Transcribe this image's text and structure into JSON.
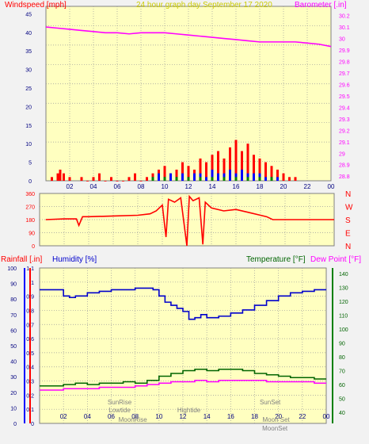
{
  "colors": {
    "background": "#f2f2f2",
    "plot_bg": "#ffffc0",
    "grid": "#9a9a9a",
    "wind": "#ff0000",
    "gust": "#0000ff",
    "green": "#008000",
    "baro": "#ff00ff",
    "direction_axis": "#ff0000",
    "humidity": "#0000cc",
    "temperature": "#006400",
    "dewpoint": "#ff00ff",
    "title": "#cccc00",
    "annotation": "#808080"
  },
  "chart_data": [
    {
      "id": "wind-baro",
      "type": "line",
      "title": "24 hour graph day   September 17 2020",
      "left_label": "Windspeed [mph]",
      "right_label": "Barometer [.in]",
      "x_ticks": [
        "02",
        "04",
        "06",
        "08",
        "10",
        "12",
        "14",
        "16",
        "18",
        "20",
        "22",
        "00"
      ],
      "left_ticks": [
        "0",
        "5",
        "10",
        "15",
        "20",
        "25",
        "30",
        "35",
        "40",
        "45"
      ],
      "right_ticks": [
        "28.8",
        "28.9",
        "29",
        "29.1",
        "29.2",
        "29.3",
        "29.4",
        "29.5",
        "29.6",
        "29.7",
        "29.8",
        "29.9",
        "30",
        "30.1",
        "30.2"
      ],
      "ylim_left": [
        0,
        47
      ],
      "ylim_right": [
        28.76,
        30.28
      ],
      "grid": true,
      "series": [
        {
          "role": "barometer",
          "axis": "right",
          "color_key": "baro",
          "x": [
            0,
            1,
            2,
            3,
            4,
            5,
            6,
            7,
            8,
            9,
            10,
            11,
            12,
            13,
            14,
            15,
            16,
            17,
            18,
            19,
            20,
            21,
            22,
            23,
            24
          ],
          "values": [
            30.1,
            30.09,
            30.08,
            30.07,
            30.06,
            30.05,
            30.05,
            30.04,
            30.05,
            30.05,
            30.05,
            30.04,
            30.03,
            30.02,
            30.01,
            30.0,
            29.99,
            29.98,
            29.97,
            29.97,
            29.97,
            29.97,
            29.96,
            29.95,
            29.93
          ]
        },
        {
          "role": "wind",
          "axis": "left",
          "color_key": "wind",
          "x": [
            0.5,
            1,
            1.2,
            1.5,
            2,
            3,
            3.5,
            4,
            4.5,
            5,
            5.5,
            6,
            6.5,
            7,
            7.5,
            8,
            8.5,
            9,
            9.5,
            10,
            10.5,
            11,
            11.5,
            12,
            12.5,
            13,
            13.5,
            14,
            14.5,
            15,
            15.5,
            16,
            16.5,
            17,
            17.5,
            18,
            18.5,
            19,
            19.5,
            20,
            20.5,
            21
          ],
          "values": [
            1,
            2,
            3,
            2,
            1,
            1,
            0,
            1,
            2,
            0,
            1,
            0,
            0,
            1,
            2,
            0,
            1,
            2,
            3,
            4,
            2,
            3,
            5,
            4,
            3,
            6,
            5,
            7,
            8,
            6,
            9,
            11,
            8,
            10,
            7,
            6,
            5,
            4,
            3,
            2,
            1,
            1
          ]
        },
        {
          "role": "gust",
          "axis": "left",
          "color_key": "gust",
          "x": [
            9,
            9.5,
            10,
            10.5,
            11,
            11.5,
            12,
            12.5,
            13,
            13.5,
            14,
            14.5,
            15,
            15.5,
            16,
            16.5,
            17,
            17.5,
            18,
            18.5,
            19,
            19.5
          ],
          "values": [
            1,
            2,
            1,
            2,
            1,
            2,
            1,
            2,
            2,
            1,
            3,
            2,
            2,
            3,
            2,
            3,
            2,
            2,
            2,
            1,
            1,
            1
          ]
        },
        {
          "role": "green",
          "axis": "left",
          "color_key": "green",
          "x": [
            9,
            10,
            11,
            12,
            13,
            14,
            15,
            16,
            17,
            18,
            19
          ],
          "values": [
            1,
            1,
            1,
            1,
            1,
            1,
            1,
            1,
            1,
            1,
            1
          ]
        }
      ]
    },
    {
      "id": "wind-direction",
      "type": "line",
      "left_ticks": [
        "0",
        "90",
        "180",
        "270",
        "360"
      ],
      "right_labels": [
        "N",
        "W",
        "S",
        "E",
        "N"
      ],
      "ylim": [
        0,
        360
      ],
      "series": [
        {
          "role": "direction",
          "color_key": "wind",
          "x": [
            0.5,
            2,
            3,
            3.2,
            3.5,
            4,
            6,
            8,
            9,
            9.5,
            10,
            10.3,
            10.5,
            11,
            11.5,
            12,
            12.2,
            12.5,
            13,
            13.3,
            13.5,
            14,
            15,
            16,
            17,
            18,
            18.5,
            19,
            20,
            21,
            22,
            23,
            24
          ],
          "values": [
            180,
            185,
            185,
            140,
            200,
            200,
            205,
            210,
            220,
            240,
            280,
            60,
            320,
            300,
            330,
            0,
            340,
            310,
            330,
            10,
            300,
            260,
            240,
            250,
            230,
            210,
            200,
            180,
            180,
            180,
            180,
            180,
            180
          ]
        }
      ]
    },
    {
      "id": "temp-humidity",
      "type": "line",
      "left_label_1": "Rainfall [.in]",
      "left_label_2": "Humidity [%]",
      "right_label_1": "Temperature [°F]",
      "right_label_2": "Dew Point [°F]",
      "x_ticks": [
        "02",
        "04",
        "06",
        "08",
        "10",
        "12",
        "14",
        "16",
        "18",
        "20",
        "22",
        "00"
      ],
      "rain_ticks": [
        "0",
        "0.1",
        "0.2",
        "0.3",
        "0.4",
        "0.5",
        "0.6",
        "0.7",
        "0.8",
        "0.9",
        "1",
        "1.1"
      ],
      "humidity_ticks": [
        "0",
        "10",
        "20",
        "30",
        "40",
        "50",
        "60",
        "70",
        "80",
        "90",
        "100"
      ],
      "temp_ticks": [
        "40",
        "50",
        "60",
        "70",
        "80",
        "90",
        "100",
        "110",
        "120",
        "130",
        "140"
      ],
      "ylim_rain": [
        0,
        1.1
      ],
      "ylim_humidity": [
        0,
        100
      ],
      "ylim_temp": [
        32,
        144
      ],
      "grid": true,
      "series": [
        {
          "role": "humidity",
          "axis": "humidity",
          "color_key": "humidity",
          "x": [
            0,
            1,
            2,
            2.5,
            3,
            4,
            5,
            6,
            7,
            8,
            9,
            9.5,
            10,
            10.5,
            11,
            11.5,
            12,
            12.5,
            13,
            13.5,
            14,
            15,
            16,
            17,
            18,
            19,
            20,
            21,
            22,
            23,
            24
          ],
          "values": [
            86,
            86,
            82,
            81,
            82,
            84,
            85,
            86,
            86,
            87,
            87,
            86,
            82,
            78,
            76,
            74,
            72,
            67,
            68,
            70,
            68,
            69,
            71,
            73,
            76,
            79,
            82,
            84,
            85,
            86,
            86
          ]
        },
        {
          "role": "temperature",
          "axis": "temp",
          "color_key": "temperature",
          "x": [
            0,
            1,
            2,
            3,
            4,
            5,
            6,
            7,
            8,
            9,
            10,
            11,
            12,
            13,
            14,
            15,
            16,
            17,
            18,
            19,
            20,
            21,
            22,
            23,
            24
          ],
          "values": [
            59,
            59,
            60,
            61,
            60,
            61,
            61,
            62,
            61,
            63,
            66,
            68,
            70,
            71,
            70,
            71,
            71,
            70,
            68,
            67,
            66,
            65,
            65,
            64,
            64
          ]
        },
        {
          "role": "dewpoint",
          "axis": "temp",
          "color_key": "dewpoint",
          "x": [
            0,
            1,
            2,
            3,
            4,
            5,
            6,
            7,
            8,
            9,
            10,
            11,
            12,
            13,
            14,
            15,
            16,
            17,
            18,
            19,
            20,
            21,
            22,
            23,
            24
          ],
          "values": [
            56,
            56,
            57,
            57,
            57,
            58,
            58,
            58,
            59,
            60,
            61,
            62,
            62,
            63,
            62,
            63,
            63,
            63,
            63,
            62,
            62,
            62,
            62,
            61,
            61
          ]
        }
      ],
      "annotations": [
        {
          "text": "SunRise",
          "hour": 6.7,
          "row": 0
        },
        {
          "text": "Lowtide",
          "hour": 6.7,
          "row": 1
        },
        {
          "text": "MoonRise",
          "hour": 7.8,
          "row": 2
        },
        {
          "text": "Hightide",
          "hour": 12.5,
          "row": 1
        },
        {
          "text": "SunSet",
          "hour": 19.3,
          "row": 0
        },
        {
          "text": "Moon Set",
          "hour": 19.8,
          "row": 2
        },
        {
          "text": "MoonSet",
          "hour": 19.7,
          "row": 3
        }
      ]
    }
  ]
}
